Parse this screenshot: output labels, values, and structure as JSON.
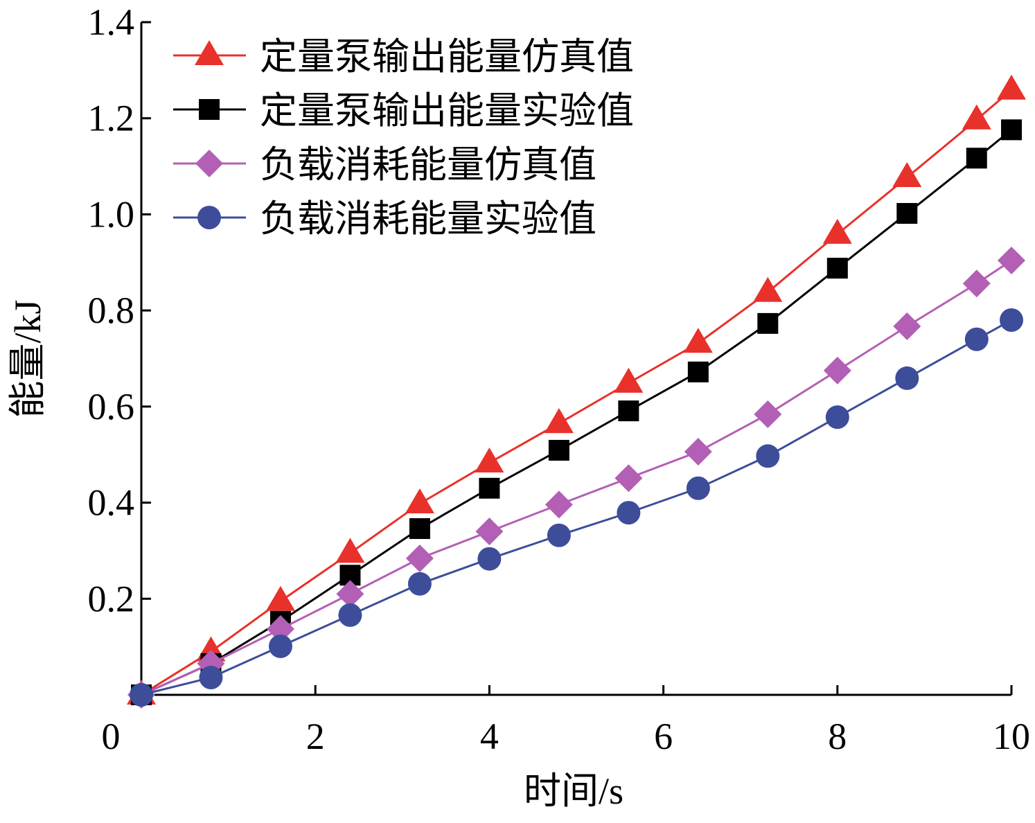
{
  "chart_data": {
    "type": "line",
    "xlabel": "时间/s",
    "ylabel": "能量/kJ",
    "x": [
      0,
      0.8,
      1.6,
      2.4,
      3.2,
      4.0,
      4.8,
      5.6,
      6.4,
      7.2,
      8.0,
      8.8,
      9.6,
      10
    ],
    "series": [
      {
        "name": "定量泵输出能量仿真值",
        "color": "#e8312a",
        "marker": "triangle",
        "values": [
          0,
          0.09,
          0.195,
          0.295,
          0.398,
          0.483,
          0.565,
          0.649,
          0.732,
          0.838,
          0.959,
          1.077,
          1.197,
          1.259
        ]
      },
      {
        "name": "定量泵输出能量实验值",
        "color": "#000000",
        "marker": "square",
        "values": [
          0,
          0.065,
          0.153,
          0.249,
          0.346,
          0.43,
          0.509,
          0.591,
          0.672,
          0.773,
          0.888,
          1.002,
          1.117,
          1.176
        ]
      },
      {
        "name": "负载消耗能量仿真值",
        "color": "#b35fb5",
        "marker": "diamond",
        "values": [
          0,
          0.065,
          0.137,
          0.21,
          0.284,
          0.34,
          0.396,
          0.451,
          0.506,
          0.584,
          0.675,
          0.767,
          0.856,
          0.904
        ]
      },
      {
        "name": "负载消耗能量实验值",
        "color": "#3d4d9a",
        "marker": "circle",
        "values": [
          0,
          0.036,
          0.101,
          0.166,
          0.231,
          0.283,
          0.332,
          0.379,
          0.43,
          0.497,
          0.578,
          0.659,
          0.74,
          0.78
        ]
      }
    ],
    "xlim": [
      0,
      10
    ],
    "xticks": [
      0,
      2,
      4,
      6,
      8,
      10
    ],
    "ylim": [
      0,
      1.4
    ],
    "yticks": [
      0.2,
      0.4,
      0.6,
      0.8,
      {
        "value": 1.0,
        "label": "1.0"
      },
      1.2,
      1.4
    ],
    "grid": false,
    "legend": "upper left"
  }
}
